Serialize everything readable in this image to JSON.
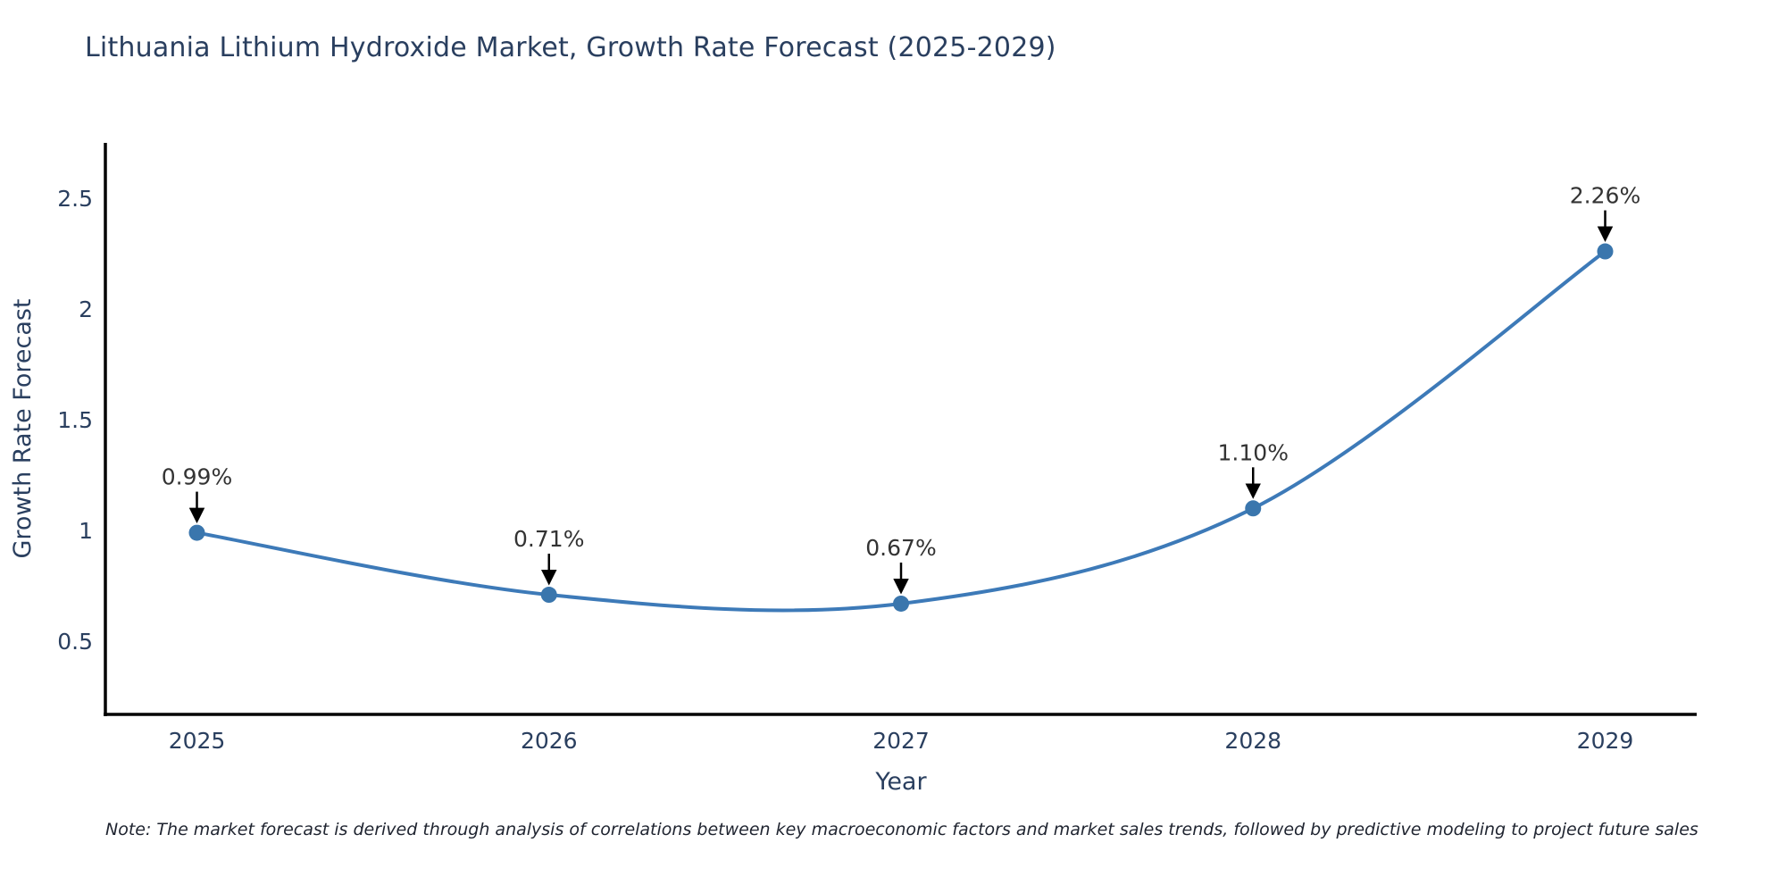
{
  "title": "Lithuania Lithium Hydroxide Market, Growth Rate Forecast (2025-2029)",
  "note": "Note: The market forecast is derived through analysis of correlations between key macroeconomic factors and market sales trends, followed by predictive modeling to project future sales",
  "chart_data": {
    "type": "line",
    "line_shape": "spline",
    "title": "Lithuania Lithium Hydroxide Market, Growth Rate Forecast (2025-2029)",
    "xlabel": "Year",
    "ylabel": "Growth Rate Forecast",
    "x": [
      2025,
      2026,
      2027,
      2028,
      2029
    ],
    "values": [
      0.99,
      0.71,
      0.67,
      1.1,
      2.26
    ],
    "point_labels": [
      "0.99%",
      "0.71%",
      "0.67%",
      "1.10%",
      "2.26%"
    ],
    "xtick_labels": [
      "2025",
      "2026",
      "2027",
      "2028",
      "2029"
    ],
    "ytick_values": [
      0.5,
      1,
      1.5,
      2,
      2.5
    ],
    "ytick_labels": [
      "0.5",
      "1",
      "1.5",
      "2",
      "2.5"
    ],
    "xlim": [
      2024.74,
      2029.26
    ],
    "ylim": [
      0.17,
      2.75
    ],
    "grid": false,
    "legend": false,
    "colors": {
      "line": "#3d7ab8",
      "marker": "#3a76ad",
      "axis": "#000000",
      "tick_text": "#2a3f5f",
      "axis_title_text": "#2a3f5f",
      "annotation_text": "#333333",
      "arrow": "#000000",
      "title_text": "#2a3f5f",
      "background": "#ffffff"
    }
  }
}
